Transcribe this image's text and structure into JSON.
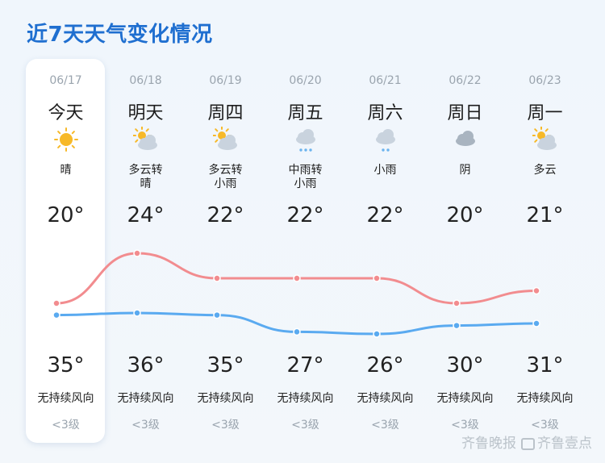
{
  "title": "近7天天气变化情况",
  "days": [
    {
      "date": "06/17",
      "weekday": "今天",
      "condition": "晴",
      "icon": "sun-icon",
      "low": "20°",
      "high": "35°",
      "low_value": 20,
      "high_value": 35,
      "wind": "无持续风向",
      "wind_level": "<3级"
    },
    {
      "date": "06/18",
      "weekday": "明天",
      "condition": "多云转\n晴",
      "icon": "partly-cloudy-icon",
      "low": "24°",
      "high": "36°",
      "low_value": 24,
      "high_value": 36,
      "wind": "无持续风向",
      "wind_level": "<3级"
    },
    {
      "date": "06/19",
      "weekday": "周四",
      "condition": "多云转\n小雨",
      "icon": "partly-cloudy-icon",
      "low": "22°",
      "high": "35°",
      "low_value": 22,
      "high_value": 35,
      "wind": "无持续风向",
      "wind_level": "<3级"
    },
    {
      "date": "06/20",
      "weekday": "周五",
      "condition": "中雨转\n小雨",
      "icon": "rain-icon",
      "low": "22°",
      "high": "27°",
      "low_value": 22,
      "high_value": 27,
      "wind": "无持续风向",
      "wind_level": "<3级"
    },
    {
      "date": "06/21",
      "weekday": "周六",
      "condition": "小雨",
      "icon": "light-rain-icon",
      "low": "22°",
      "high": "26°",
      "low_value": 22,
      "high_value": 26,
      "wind": "无持续风向",
      "wind_level": "<3级"
    },
    {
      "date": "06/22",
      "weekday": "周日",
      "condition": "阴",
      "icon": "overcast-icon",
      "low": "20°",
      "high": "30°",
      "low_value": 20,
      "high_value": 30,
      "wind": "无持续风向",
      "wind_level": "<3级"
    },
    {
      "date": "06/23",
      "weekday": "周一",
      "condition": "多云",
      "icon": "partly-cloudy-icon",
      "low": "21°",
      "high": "31°",
      "low_value": 21,
      "high_value": 31,
      "wind": "无持续风向",
      "wind_level": "<3级"
    }
  ],
  "colors": {
    "title": "#1f6fd0",
    "high_curve": "#f28c8f",
    "low_curve": "#5aaaf0",
    "sun": "#f7b928",
    "cloud": "#c9d3de",
    "rain": "#6bb3ee"
  },
  "watermark": {
    "text1": "齐鲁晚报",
    "text2": "齐鲁壹点"
  }
}
